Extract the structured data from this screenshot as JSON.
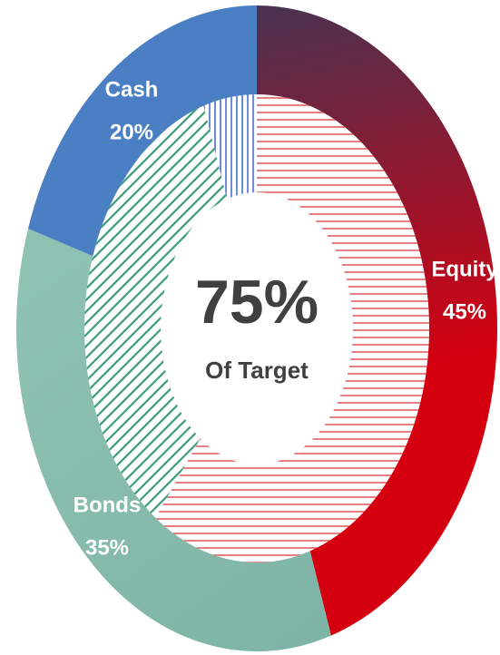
{
  "chart_data": {
    "type": "donut",
    "categories": [
      "Equity",
      "Bonds",
      "Cash"
    ],
    "series": [
      {
        "values": [
          45,
          35,
          20
        ],
        "value_labels": [
          "45%",
          "35%",
          "20%"
        ],
        "colors": [
          "#d40010",
          "#7fb5a6",
          "#4a7fc3"
        ]
      },
      {
        "values": [
          60,
          35,
          5
        ],
        "colors": [
          "#e06060",
          "#3a9a7a",
          "#4a6fd0"
        ]
      }
    ],
    "center_value": "75%",
    "center_label": "Of Target"
  }
}
